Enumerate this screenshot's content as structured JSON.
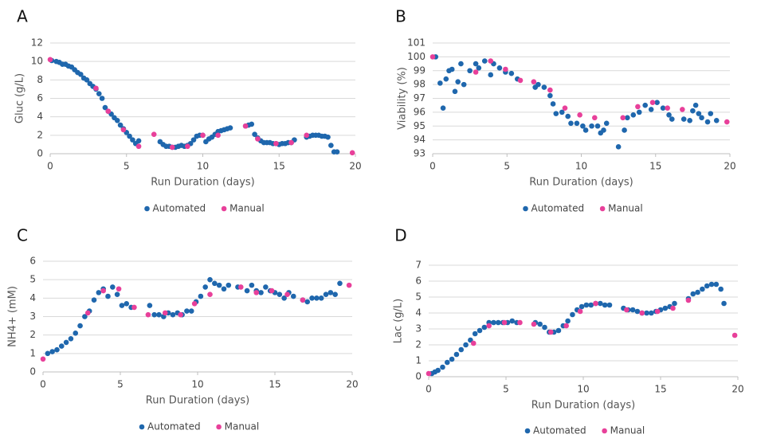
{
  "chart_data": [
    {
      "type": "scatter",
      "panel_label": "A",
      "x_label": "Run Duration (days)",
      "y_label": "Gluc (g/L)",
      "xlim": [
        0,
        20
      ],
      "xticks": [
        0,
        5,
        10,
        15,
        20
      ],
      "ylim": [
        0,
        12
      ],
      "yticks": [
        0,
        2,
        4,
        6,
        8,
        10,
        12
      ],
      "grid": true,
      "series": [
        {
          "name": "Automated",
          "color": "#1f67ad",
          "x": [
            0.1,
            0.4,
            0.6,
            0.8,
            1.0,
            1.2,
            1.4,
            1.6,
            1.8,
            2.0,
            2.2,
            2.4,
            2.6,
            2.8,
            3.0,
            3.2,
            3.4,
            3.6,
            3.8,
            4.0,
            4.2,
            4.4,
            4.6,
            4.8,
            5.0,
            5.2,
            5.4,
            5.6,
            5.8,
            7.2,
            7.4,
            7.6,
            7.8,
            8.0,
            8.2,
            8.4,
            8.6,
            8.8,
            9.0,
            9.2,
            9.4,
            9.6,
            9.8,
            10.0,
            10.2,
            10.4,
            10.6,
            10.8,
            11.0,
            11.2,
            11.4,
            11.6,
            11.8,
            12.8,
            13.0,
            13.2,
            13.4,
            13.6,
            13.8,
            14.0,
            14.2,
            14.4,
            14.6,
            14.8,
            15.0,
            15.2,
            15.4,
            15.6,
            15.8,
            16.0,
            16.8,
            17.0,
            17.2,
            17.4,
            17.6,
            17.8,
            18.0,
            18.2,
            18.4,
            18.6,
            18.8
          ],
          "values": [
            10.1,
            10.0,
            9.9,
            9.7,
            9.7,
            9.5,
            9.4,
            9.1,
            8.8,
            8.6,
            8.2,
            8.0,
            7.6,
            7.3,
            7.0,
            6.5,
            6.0,
            5.0,
            4.6,
            4.3,
            3.9,
            3.6,
            3.1,
            2.7,
            2.3,
            1.9,
            1.5,
            1.1,
            1.4,
            1.3,
            1.0,
            0.8,
            0.8,
            0.7,
            0.7,
            0.8,
            0.9,
            0.8,
            0.9,
            1.1,
            1.5,
            1.9,
            2.0,
            2.0,
            1.3,
            1.6,
            1.8,
            2.1,
            2.4,
            2.5,
            2.6,
            2.7,
            2.8,
            3.0,
            3.1,
            3.2,
            2.1,
            1.7,
            1.4,
            1.2,
            1.2,
            1.2,
            1.1,
            1.1,
            1.0,
            1.1,
            1.1,
            1.2,
            1.2,
            1.5,
            1.8,
            1.9,
            2.0,
            2.0,
            2.0,
            1.9,
            1.9,
            1.8,
            0.9,
            0.2,
            0.2
          ]
        },
        {
          "name": "Manual",
          "color": "#e8409a",
          "x": [
            0,
            3.0,
            3.8,
            4.8,
            5.8,
            6.8,
            8.0,
            9.0,
            10.0,
            11.0,
            12.8,
            13.6,
            14.8,
            15.8,
            16.8,
            19.8
          ],
          "values": [
            10.2,
            7.1,
            4.6,
            2.6,
            0.8,
            2.1,
            0.7,
            0.8,
            2.0,
            2.0,
            3.0,
            1.6,
            1.1,
            1.2,
            2.0,
            0.1
          ]
        }
      ]
    },
    {
      "type": "scatter",
      "panel_label": "B",
      "x_label": "Run Duration (days)",
      "y_label": "Viability (%)",
      "xlim": [
        0,
        20
      ],
      "xticks": [
        0,
        5,
        10,
        15,
        20
      ],
      "ylim": [
        93,
        101
      ],
      "yticks": [
        93,
        94,
        95,
        96,
        97,
        98,
        99,
        100,
        101
      ],
      "grid": true,
      "series": [
        {
          "name": "Automated",
          "color": "#1f67ad",
          "x": [
            0.2,
            0.5,
            0.7,
            0.9,
            1.1,
            1.3,
            1.5,
            1.7,
            1.9,
            2.1,
            2.5,
            2.9,
            3.1,
            3.5,
            3.9,
            4.1,
            4.5,
            4.9,
            5.3,
            5.7,
            6.9,
            7.1,
            7.5,
            7.9,
            8.1,
            8.3,
            8.7,
            9.1,
            9.3,
            9.7,
            10.1,
            10.3,
            10.7,
            11.1,
            11.3,
            11.5,
            11.7,
            12.5,
            12.9,
            13.1,
            13.5,
            13.9,
            14.3,
            14.7,
            15.1,
            15.5,
            15.9,
            16.1,
            16.9,
            17.3,
            17.5,
            17.7,
            17.9,
            18.1,
            18.5,
            18.7,
            19.1
          ],
          "values": [
            100.0,
            98.1,
            96.3,
            98.4,
            99.0,
            99.1,
            97.5,
            98.2,
            99.5,
            98.0,
            99.0,
            99.5,
            99.2,
            99.7,
            98.7,
            99.5,
            99.2,
            98.9,
            98.8,
            98.4,
            97.8,
            98.0,
            97.8,
            97.2,
            96.6,
            95.9,
            96.0,
            95.7,
            95.2,
            95.2,
            95.0,
            94.7,
            95.0,
            95.0,
            94.5,
            94.7,
            95.2,
            93.5,
            94.7,
            95.6,
            95.8,
            96.0,
            96.5,
            96.2,
            96.7,
            96.3,
            95.8,
            95.5,
            95.5,
            95.4,
            96.1,
            96.5,
            95.9,
            95.6,
            95.3,
            95.9,
            95.4
          ]
        },
        {
          "name": "Manual",
          "color": "#e8409a",
          "x": [
            0,
            2.9,
            3.9,
            4.9,
            5.9,
            6.8,
            7.9,
            8.9,
            9.9,
            10.9,
            12.8,
            13.8,
            14.8,
            15.8,
            16.8,
            19.8
          ],
          "values": [
            100.0,
            98.9,
            99.7,
            99.1,
            98.3,
            98.2,
            97.6,
            96.3,
            95.8,
            95.6,
            95.6,
            96.4,
            96.7,
            96.3,
            96.2,
            95.3
          ]
        }
      ]
    },
    {
      "type": "scatter",
      "panel_label": "C",
      "x_label": "Run Duration (days)",
      "y_label": "NH4+ (mM)",
      "xlim": [
        0,
        20
      ],
      "xticks": [
        0,
        5,
        10,
        15,
        20
      ],
      "ylim": [
        0,
        6
      ],
      "yticks": [
        0,
        1,
        2,
        3,
        4,
        5,
        6
      ],
      "grid": true,
      "series": [
        {
          "name": "Automated",
          "color": "#1f67ad",
          "x": [
            0.3,
            0.6,
            0.9,
            1.2,
            1.5,
            1.8,
            2.1,
            2.4,
            2.7,
            3.0,
            3.3,
            3.6,
            3.9,
            4.2,
            4.5,
            4.8,
            5.1,
            5.4,
            5.7,
            6.9,
            7.2,
            7.5,
            7.8,
            8.1,
            8.4,
            8.7,
            9.0,
            9.3,
            9.6,
            9.9,
            10.2,
            10.5,
            10.8,
            11.1,
            11.4,
            11.7,
            12.0,
            12.6,
            13.2,
            13.5,
            13.8,
            14.1,
            14.4,
            14.7,
            15.0,
            15.3,
            15.6,
            15.9,
            16.2,
            16.8,
            17.1,
            17.4,
            17.7,
            18.0,
            18.3,
            18.6,
            18.9,
            19.2
          ],
          "values": [
            1.0,
            1.1,
            1.2,
            1.4,
            1.6,
            1.8,
            2.1,
            2.5,
            3.0,
            3.3,
            3.9,
            4.3,
            4.5,
            4.1,
            4.6,
            4.2,
            3.6,
            3.7,
            3.5,
            3.6,
            3.1,
            3.1,
            3.0,
            3.2,
            3.1,
            3.2,
            3.1,
            3.3,
            3.3,
            3.8,
            4.1,
            4.6,
            5.0,
            4.8,
            4.7,
            4.5,
            4.7,
            4.6,
            4.4,
            4.7,
            4.4,
            4.3,
            4.6,
            4.4,
            4.3,
            4.2,
            4.0,
            4.3,
            4.1,
            3.9,
            3.8,
            4.0,
            4.0,
            4.0,
            4.2,
            4.3,
            4.2,
            4.8
          ]
        },
        {
          "name": "Manual",
          "color": "#e8409a",
          "x": [
            0,
            2.9,
            3.9,
            4.9,
            5.9,
            6.8,
            7.9,
            8.9,
            9.8,
            10.8,
            12.8,
            13.8,
            14.8,
            15.8,
            16.8,
            19.8
          ],
          "values": [
            0.7,
            3.2,
            4.4,
            4.5,
            3.5,
            3.1,
            3.2,
            3.1,
            3.7,
            4.2,
            4.6,
            4.3,
            4.4,
            4.2,
            3.9,
            4.7
          ]
        }
      ]
    },
    {
      "type": "scatter",
      "panel_label": "D",
      "x_label": "Run Duration (days)",
      "y_label": "Lac (g/L)",
      "xlim": [
        0,
        20
      ],
      "xticks": [
        0,
        5,
        10,
        15,
        20
      ],
      "ylim": [
        0,
        7
      ],
      "yticks": [
        0,
        1,
        2,
        3,
        4,
        5,
        6,
        7
      ],
      "grid": true,
      "series": [
        {
          "name": "Automated",
          "color": "#1f67ad",
          "x": [
            0.2,
            0.4,
            0.6,
            0.9,
            1.2,
            1.5,
            1.8,
            2.1,
            2.4,
            2.7,
            3.0,
            3.3,
            3.6,
            3.9,
            4.2,
            4.5,
            4.8,
            5.1,
            5.4,
            5.7,
            6.9,
            7.2,
            7.5,
            7.8,
            8.1,
            8.4,
            8.7,
            9.0,
            9.3,
            9.6,
            9.9,
            10.2,
            10.5,
            10.8,
            11.1,
            11.4,
            11.7,
            12.6,
            12.9,
            13.2,
            13.5,
            13.8,
            14.1,
            14.4,
            14.7,
            15.0,
            15.3,
            15.6,
            15.9,
            16.8,
            17.1,
            17.4,
            17.7,
            18.0,
            18.3,
            18.6,
            18.9,
            19.1
          ],
          "values": [
            0.2,
            0.3,
            0.4,
            0.6,
            0.9,
            1.1,
            1.4,
            1.7,
            2.0,
            2.3,
            2.7,
            2.9,
            3.1,
            3.4,
            3.4,
            3.4,
            3.4,
            3.4,
            3.5,
            3.4,
            3.4,
            3.3,
            3.1,
            2.8,
            2.8,
            2.9,
            3.2,
            3.5,
            3.9,
            4.2,
            4.4,
            4.5,
            4.5,
            4.6,
            4.6,
            4.5,
            4.5,
            4.3,
            4.2,
            4.2,
            4.1,
            4.0,
            4.0,
            4.0,
            4.1,
            4.2,
            4.3,
            4.4,
            4.6,
            4.9,
            5.2,
            5.3,
            5.5,
            5.7,
            5.8,
            5.8,
            5.5,
            4.6
          ]
        },
        {
          "name": "Manual",
          "color": "#e8409a",
          "x": [
            0,
            2.9,
            3.9,
            4.9,
            5.9,
            6.8,
            7.9,
            8.9,
            9.8,
            10.8,
            12.8,
            13.8,
            14.8,
            15.8,
            16.8,
            19.8
          ],
          "values": [
            0.2,
            2.1,
            3.2,
            3.4,
            3.4,
            3.3,
            2.8,
            3.2,
            4.1,
            4.6,
            4.2,
            4.0,
            4.1,
            4.3,
            4.8,
            2.6
          ]
        }
      ]
    }
  ]
}
